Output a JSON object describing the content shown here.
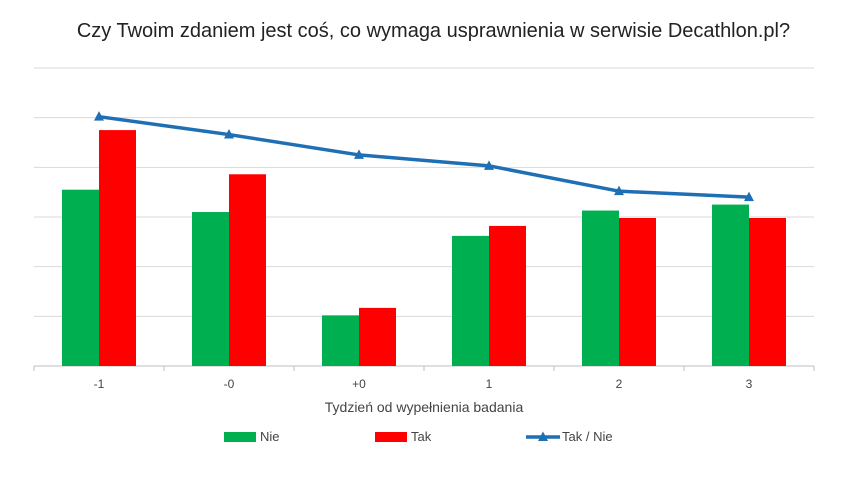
{
  "chart_data": {
    "type": "bar+line",
    "title": "Czy Twoim zdaniem jest coś, co wymaga usprawnienia w serwisie Decathlon.pl?",
    "xlabel": "Tydzień od wypełnienia badania",
    "ylabel": "",
    "categories": [
      "-1",
      "-0",
      "+0",
      "1",
      "2",
      "3"
    ],
    "ylim": [
      0,
      6
    ],
    "grid": true,
    "y_tick_labels_visible": false,
    "legend_position": "bottom",
    "series": [
      {
        "name": "Nie",
        "type": "bar",
        "color": "#00b050",
        "values": [
          3.55,
          3.1,
          1.02,
          2.62,
          3.13,
          3.25
        ]
      },
      {
        "name": "Tak",
        "type": "bar",
        "color": "#ff0000",
        "values": [
          4.75,
          3.86,
          1.17,
          2.82,
          2.98,
          2.98
        ]
      },
      {
        "name": "Tak / Nie",
        "type": "line",
        "marker": "triangle",
        "color": "#1f6fb5",
        "values": [
          5.02,
          4.66,
          4.25,
          4.03,
          3.52,
          3.4
        ]
      }
    ]
  }
}
